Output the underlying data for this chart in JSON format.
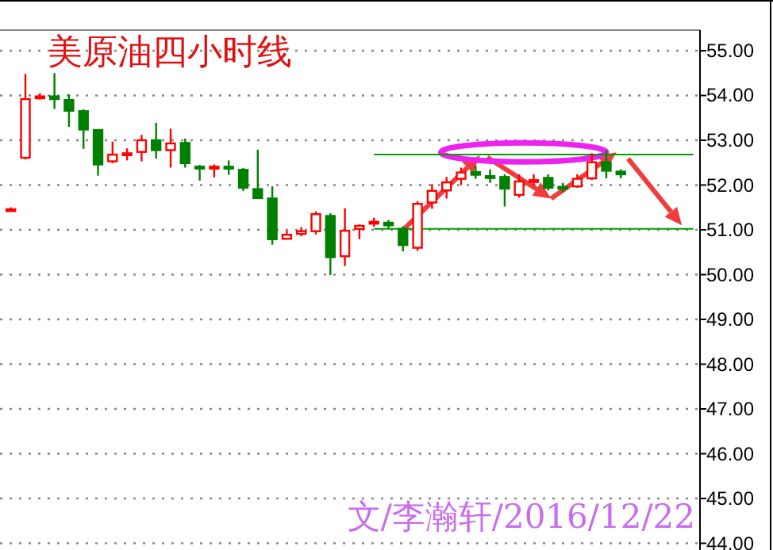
{
  "chart_data": {
    "type": "candlestick",
    "title": "美原油四小时线",
    "annotations": [
      "文/李瀚轩/2016/12/22"
    ],
    "categories": [
      null,
      null,
      null,
      null,
      null,
      null,
      null,
      null,
      null,
      null,
      null,
      null,
      null,
      null,
      null,
      null,
      null,
      null,
      null,
      null,
      null,
      null,
      null,
      null,
      null,
      null,
      null,
      null,
      null,
      null,
      null,
      null,
      null,
      null,
      null,
      null,
      null,
      null,
      null,
      null,
      null,
      null,
      null,
      null,
      null,
      null,
      null,
      null
    ],
    "ohlc": [
      [
        51.44,
        51.5,
        51.42,
        51.46
      ],
      [
        52.61,
        54.48,
        52.57,
        53.92
      ],
      [
        53.96,
        54.05,
        53.91,
        53.98
      ],
      [
        53.98,
        54.5,
        53.7,
        53.92
      ],
      [
        53.9,
        54.03,
        53.3,
        53.66
      ],
      [
        53.65,
        53.69,
        52.81,
        53.24
      ],
      [
        53.23,
        53.23,
        52.21,
        52.46
      ],
      [
        52.53,
        52.97,
        52.49,
        52.68
      ],
      [
        52.69,
        52.82,
        52.55,
        52.71
      ],
      [
        52.74,
        53.12,
        52.53,
        53.0
      ],
      [
        53.0,
        53.39,
        52.59,
        52.78
      ],
      [
        52.78,
        53.26,
        52.39,
        52.93
      ],
      [
        52.94,
        53.04,
        52.39,
        52.49
      ],
      [
        52.41,
        52.45,
        52.1,
        52.39
      ],
      [
        52.39,
        52.46,
        52.17,
        52.41
      ],
      [
        52.41,
        52.55,
        52.23,
        52.39
      ],
      [
        52.34,
        52.38,
        51.87,
        51.94
      ],
      [
        51.91,
        52.79,
        51.69,
        51.71
      ],
      [
        51.7,
        51.97,
        50.67,
        50.79
      ],
      [
        50.8,
        50.98,
        50.8,
        50.89
      ],
      [
        50.91,
        51.06,
        50.86,
        50.97
      ],
      [
        50.97,
        51.41,
        50.9,
        51.35
      ],
      [
        51.31,
        51.37,
        49.99,
        50.39
      ],
      [
        50.41,
        51.48,
        50.19,
        50.98
      ],
      [
        51.02,
        51.12,
        50.79,
        51.09
      ],
      [
        51.15,
        51.27,
        51.07,
        51.18
      ],
      [
        51.16,
        51.22,
        51.03,
        51.1
      ],
      [
        51.02,
        51.08,
        50.52,
        50.66
      ],
      [
        50.6,
        51.64,
        50.53,
        51.58
      ],
      [
        51.61,
        52.02,
        51.47,
        51.87
      ],
      [
        51.88,
        52.18,
        51.7,
        52.06
      ],
      [
        52.14,
        52.39,
        52.0,
        52.28
      ],
      [
        52.29,
        52.43,
        52.14,
        52.23
      ],
      [
        52.2,
        52.35,
        52.05,
        52.18
      ],
      [
        52.18,
        52.24,
        51.52,
        51.92
      ],
      [
        51.78,
        52.24,
        51.72,
        52.08
      ],
      [
        52.09,
        52.24,
        52.0,
        52.11
      ],
      [
        52.16,
        52.24,
        51.88,
        51.94
      ],
      [
        51.96,
        52.05,
        51.84,
        51.94
      ],
      [
        51.97,
        52.24,
        51.94,
        52.14
      ],
      [
        52.15,
        52.71,
        52.11,
        52.51
      ],
      [
        52.51,
        52.77,
        52.15,
        52.32
      ],
      [
        52.3,
        52.35,
        52.15,
        52.24
      ],
      null,
      null,
      null,
      null,
      null
    ],
    "colors": [
      "#ff0000",
      "#ff0000",
      "#ff0000",
      "#008000",
      "#008000",
      "#008000",
      "#008000",
      "#ff0000",
      "#ff0000",
      "#ff0000",
      "#008000",
      "#ff0000",
      "#008000",
      "#008000",
      "#ff0000",
      "#008000",
      "#008000",
      "#008000",
      "#008000",
      "#ff0000",
      "#ff0000",
      "#ff0000",
      "#008000",
      "#ff0000",
      "#ff0000",
      "#ff0000",
      "#008000",
      "#008000",
      "#ff0000",
      "#ff0000",
      "#ff0000",
      "#ff0000",
      "#008000",
      "#008000",
      "#008000",
      "#ff0000",
      "#ff0000",
      "#008000",
      "#008000",
      "#ff0000",
      "#ff0000",
      "#008000",
      "#008000",
      null,
      null,
      null,
      null,
      null
    ],
    "series": [
      {
        "type": "line",
        "color": "#00a000",
        "values": [
          null,
          null,
          null,
          null,
          null,
          null,
          null,
          null,
          null,
          null,
          null,
          null,
          null,
          null,
          null,
          null,
          null,
          null,
          null,
          null,
          null,
          null,
          null,
          null,
          null,
          52.68,
          52.68,
          52.68,
          52.68,
          52.68,
          52.68,
          52.68,
          52.68,
          52.68,
          52.68,
          52.68,
          52.68,
          52.68,
          52.68,
          52.68,
          52.68,
          52.68,
          52.68,
          52.68,
          52.68,
          52.68,
          52.68,
          52.68
        ]
      },
      {
        "type": "line",
        "color": "#00a000",
        "values": [
          null,
          null,
          null,
          null,
          null,
          null,
          null,
          null,
          null,
          null,
          null,
          null,
          null,
          null,
          null,
          null,
          null,
          null,
          null,
          null,
          null,
          null,
          null,
          null,
          null,
          51.02,
          51.02,
          51.02,
          51.02,
          51.02,
          51.02,
          51.02,
          51.02,
          51.02,
          51.02,
          51.02,
          51.02,
          51.02,
          51.02,
          51.02,
          51.02,
          51.02,
          51.02,
          51.02,
          51.02,
          51.02,
          51.02,
          51.02
        ]
      }
    ],
    "ylim": [
      43.85,
      55.46
    ],
    "yticks": [
      {
        "value": 55,
        "label": "55.00"
      },
      {
        "value": 54,
        "label": "54.00"
      },
      {
        "value": 53,
        "label": "53.00"
      },
      {
        "value": 52,
        "label": "52.00"
      },
      {
        "value": 51,
        "label": "51.00"
      },
      {
        "value": 50,
        "label": "50.00"
      },
      {
        "value": 49,
        "label": "49.00"
      },
      {
        "value": 48,
        "label": "48.00"
      },
      {
        "value": 47,
        "label": "47.00"
      },
      {
        "value": 46,
        "label": "46.00"
      },
      {
        "value": 45,
        "label": "45.00"
      },
      {
        "value": 44,
        "label": "44.00"
      }
    ],
    "grid": "y"
  }
}
